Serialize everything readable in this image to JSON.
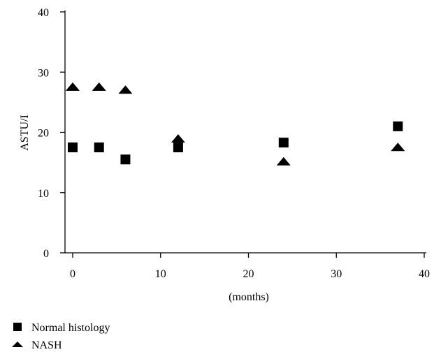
{
  "chart_data": {
    "type": "scatter",
    "xlabel": "(months)",
    "ylabel": "ASTU/I",
    "xlim": [
      0,
      40
    ],
    "ylim": [
      0,
      40
    ],
    "xticks": [
      0,
      10,
      20,
      30,
      40
    ],
    "yticks": [
      0,
      10,
      20,
      30,
      40
    ],
    "grid": false,
    "legend_position": "bottom-left",
    "series": [
      {
        "name": "Normal histology",
        "marker": "square",
        "color": "#000000",
        "x": [
          0,
          3,
          6,
          12,
          24,
          37
        ],
        "y": [
          17.5,
          17.5,
          15.5,
          17.5,
          18.3,
          21
        ]
      },
      {
        "name": "NASH",
        "marker": "triangle",
        "color": "#000000",
        "x": [
          0,
          3,
          6,
          12,
          24,
          37
        ],
        "y": [
          27.6,
          27.6,
          27.1,
          19,
          15.2,
          17.6
        ]
      }
    ]
  }
}
